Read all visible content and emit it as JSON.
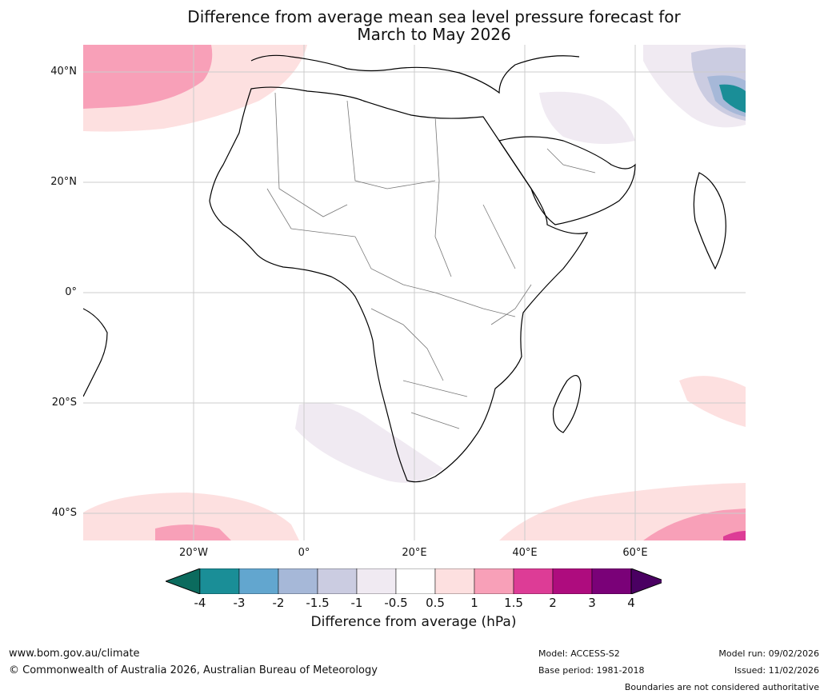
{
  "title": {
    "line1": "Difference from average mean sea level pressure forecast for",
    "line2": "March to May 2026"
  },
  "map": {
    "lat_labels": [
      "40°N",
      "20°N",
      "0°",
      "20°S",
      "40°S"
    ],
    "lon_labels": [
      "20°W",
      "0°",
      "20°E",
      "40°E",
      "60°E"
    ],
    "extent": {
      "lon_min": -40,
      "lon_max": 80,
      "lat_min": -45,
      "lat_max": 45
    },
    "gridlines": true
  },
  "colorbar": {
    "ticks": [
      "-4",
      "-3",
      "-2",
      "-1.5",
      "-1",
      "-0.5",
      "0.5",
      "1",
      "1.5",
      "2",
      "3",
      "4"
    ],
    "colors": [
      "#1a8e97",
      "#62a6cf",
      "#a6b8d8",
      "#cbcce1",
      "#f0eaf2",
      "#ffffff",
      "#fde0e0",
      "#f8a0b8",
      "#dd3c96",
      "#ae0c7e",
      "#7a0178"
    ],
    "under_color": "#0b6b5e",
    "over_color": "#4a0062",
    "label": "Difference from average (hPa)"
  },
  "footer": {
    "website": "www.bom.gov.au/climate",
    "copyright": "© Commonwealth of Australia 2026, Australian Bureau of Meteorology",
    "model": "Model: ACCESS-S2",
    "base_period": "Base period: 1981-2018",
    "model_run": "Model run: 09/02/2026",
    "issued": "Issued: 11/02/2026",
    "disclaimer": "Boundaries are not considered authoritative"
  }
}
